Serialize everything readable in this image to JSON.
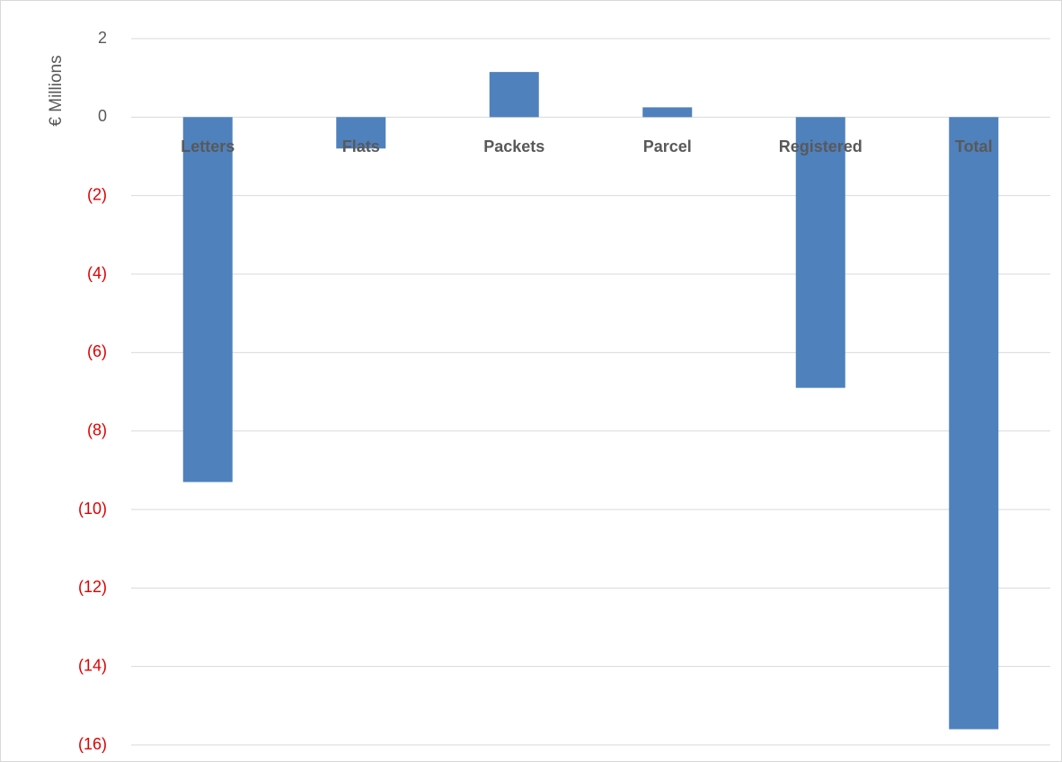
{
  "chart_data": {
    "type": "bar",
    "ylabel": "€ Millions",
    "categories": [
      "Letters",
      "Flats",
      "Packets",
      "Parcel",
      "Registered",
      "Total"
    ],
    "values": [
      -9.3,
      -0.8,
      1.15,
      0.25,
      -6.9,
      -15.6
    ],
    "ylim": [
      -16,
      2
    ],
    "yticks": [
      2,
      0,
      -2,
      -4,
      -6,
      -8,
      -10,
      -12,
      -14,
      -16
    ],
    "ytick_labels": [
      "2",
      "0",
      "(2)",
      "(4)",
      "(6)",
      "(8)",
      "(10)",
      "(12)",
      "(14)",
      "(16)"
    ],
    "grid": true,
    "legend": "none",
    "colors": {
      "bar": "#4f81bd",
      "positive_tick": "#595959",
      "negative_tick": "#e00000",
      "category_label": "#595959",
      "gridline": "#d9d9d9"
    }
  }
}
